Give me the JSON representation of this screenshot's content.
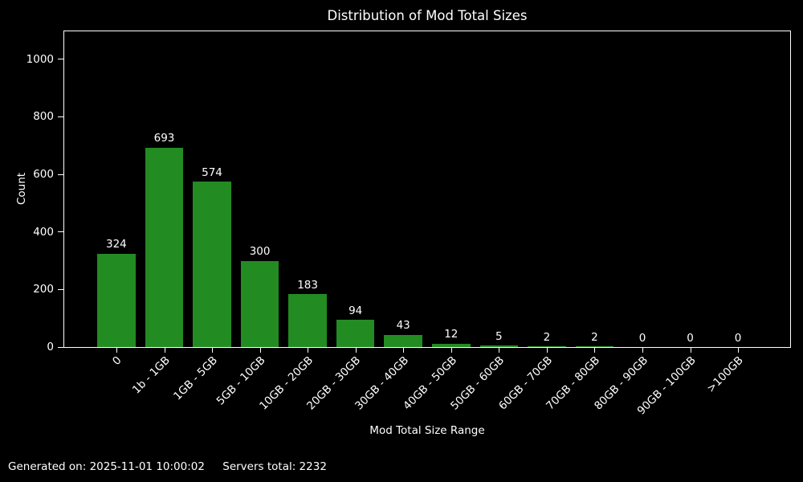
{
  "chart_data": {
    "type": "bar",
    "title": "Distribution of Mod Total Sizes",
    "xlabel": "Mod Total Size Range",
    "ylabel": "Count",
    "categories": [
      "0",
      "1b - 1GB",
      "1GB - 5GB",
      "5GB - 10GB",
      "10GB - 20GB",
      "20GB - 30GB",
      "30GB - 40GB",
      "40GB - 50GB",
      "50GB - 60GB",
      "60GB - 70GB",
      "70GB - 80GB",
      "80GB - 90GB",
      "90GB - 100GB",
      ">100GB"
    ],
    "values": [
      324,
      693,
      574,
      300,
      183,
      94,
      43,
      12,
      5,
      2,
      2,
      0,
      0,
      0
    ],
    "yticks": [
      0,
      200,
      400,
      600,
      800,
      1000
    ],
    "ylim": [
      0,
      1097
    ],
    "x_tick_rotation": 45,
    "grid": false,
    "legend": null,
    "bar_color": "#228B22",
    "background_color": "#000000",
    "text_color": "#ffffff",
    "axis_color": "#ffffff"
  },
  "footer": {
    "generated": "Generated on: 2025-11-01 10:00:02",
    "servers_total": "Servers total: 2232"
  }
}
